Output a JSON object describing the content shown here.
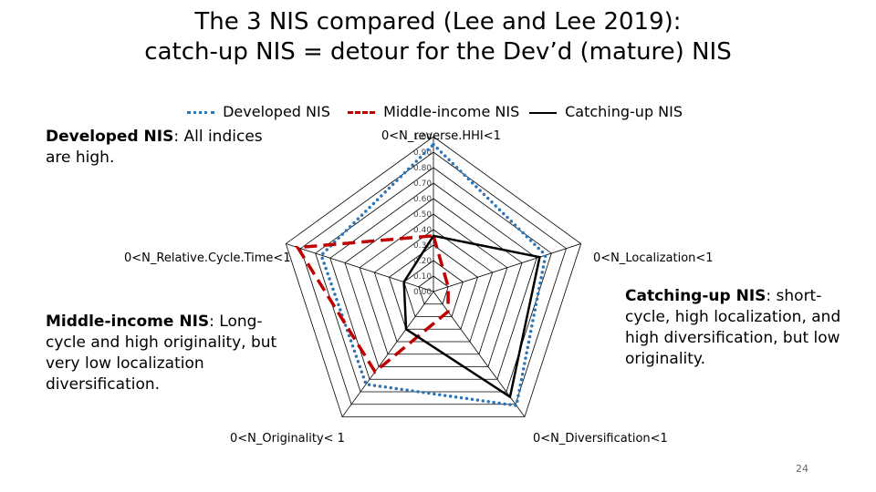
{
  "slide": {
    "title_line1": "The 3 NIS compared (Lee and Lee 2019):",
    "title_line2": "catch-up NIS = detour for the Dev’d (mature) NIS",
    "page_number": "24"
  },
  "notes": {
    "developed": {
      "key": "Developed NIS",
      "text": ": All indices are high."
    },
    "middle": {
      "key": "Middle-income NIS",
      "text": ": Long-cycle and high originality, but very low localization diversification."
    },
    "catching": {
      "key": "Catching-up NIS",
      "text": ": short-cycle, high localization, and high diversification, but low originality."
    }
  },
  "chart_data": {
    "type": "radar",
    "axes": [
      "0<N_reverse.HHI<1",
      "0<N_Localization<1",
      "0<N_Diversification<1",
      "0<N_Originality< 1",
      "0<N_Relative.Cycle.Time<1"
    ],
    "ticks": [
      "0.00",
      "0.10",
      "0.20",
      "0.30",
      "0.40",
      "0.50",
      "0.60",
      "0.70",
      "0.80",
      "0.90",
      "1.00"
    ],
    "range": [
      0,
      1
    ],
    "series": [
      {
        "name": "Developed NIS",
        "values": [
          0.95,
          0.76,
          0.91,
          0.74,
          0.76
        ],
        "color": "#2e75b6",
        "style": "dotted"
      },
      {
        "name": "Middle-income NIS",
        "values": [
          0.36,
          0.1,
          0.16,
          0.64,
          0.92
        ],
        "color": "#c00000",
        "style": "dashed"
      },
      {
        "name": "Catching-up NIS",
        "values": [
          0.36,
          0.72,
          0.84,
          0.3,
          0.2
        ],
        "color": "#000000",
        "style": "solid"
      }
    ]
  }
}
